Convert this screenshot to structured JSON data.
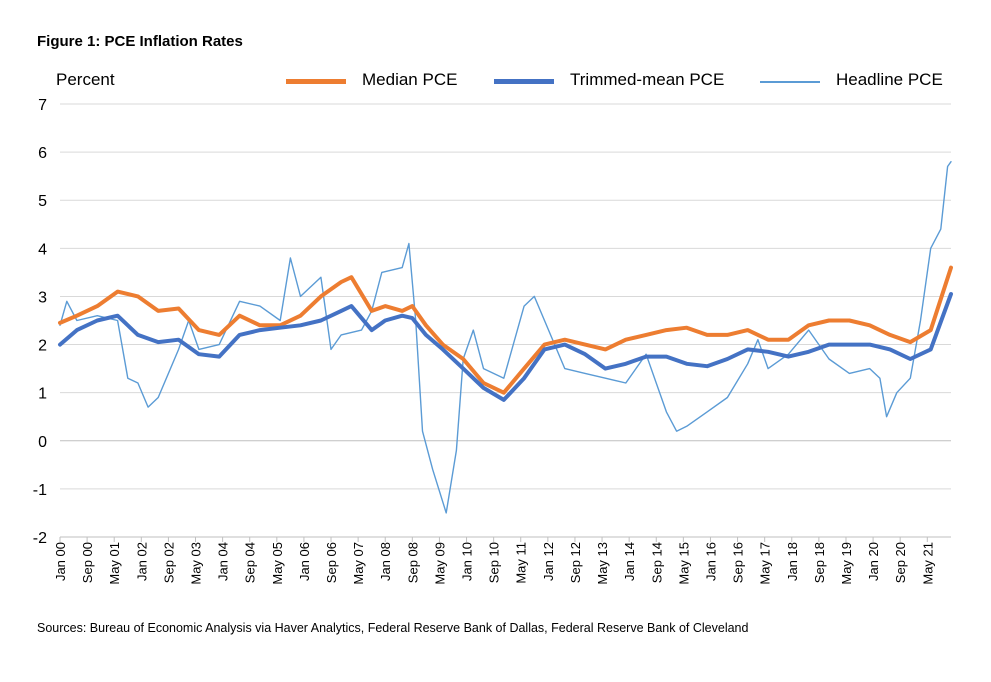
{
  "title": "Figure 1: PCE Inflation Rates",
  "source": "Sources: Bureau of Economic Analysis via Haver Analytics, Federal Reserve Bank of Dallas, Federal Reserve Bank of Cleveland",
  "chart_data": {
    "type": "line",
    "title": "Figure 1: PCE Inflation Rates",
    "xlabel": "",
    "ylabel": "Percent",
    "ylim": [
      -2,
      7
    ],
    "yticks": [
      -2,
      -1,
      0,
      1,
      2,
      3,
      4,
      5,
      6,
      7
    ],
    "xrange": [
      "2000-01",
      "2021-12"
    ],
    "xticks": [
      "Jan 00",
      "Sep 00",
      "May 01",
      "Jan 02",
      "Sep 02",
      "May 03",
      "Jan 04",
      "Sep 04",
      "May 05",
      "Jan 06",
      "Sep 06",
      "May 07",
      "Jan 08",
      "Sep 08",
      "May 09",
      "Jan 10",
      "Sep 10",
      "May 11",
      "Jan 12",
      "Sep 12",
      "May 13",
      "Jan 14",
      "Sep 14",
      "May 15",
      "Jan 16",
      "Sep 16",
      "May 17",
      "Jan 18",
      "Sep 18",
      "May 19",
      "Jan 20",
      "Sep 20",
      "May 21"
    ],
    "grid": "horizontal",
    "legend": "top",
    "series": [
      {
        "name": "Median PCE",
        "color": "#ED7D31",
        "width": "thick",
        "points": [
          [
            "2000-01",
            2.45
          ],
          [
            "2000-06",
            2.6
          ],
          [
            "2000-12",
            2.8
          ],
          [
            "2001-06",
            3.1
          ],
          [
            "2001-12",
            3.0
          ],
          [
            "2002-06",
            2.7
          ],
          [
            "2002-12",
            2.75
          ],
          [
            "2003-06",
            2.3
          ],
          [
            "2003-12",
            2.2
          ],
          [
            "2004-06",
            2.6
          ],
          [
            "2004-12",
            2.4
          ],
          [
            "2005-06",
            2.4
          ],
          [
            "2005-12",
            2.6
          ],
          [
            "2006-06",
            3.0
          ],
          [
            "2006-12",
            3.3
          ],
          [
            "2007-03",
            3.4
          ],
          [
            "2007-09",
            2.7
          ],
          [
            "2008-01",
            2.8
          ],
          [
            "2008-06",
            2.7
          ],
          [
            "2008-09",
            2.8
          ],
          [
            "2009-01",
            2.4
          ],
          [
            "2009-06",
            2.0
          ],
          [
            "2009-12",
            1.7
          ],
          [
            "2010-06",
            1.2
          ],
          [
            "2010-12",
            1.0
          ],
          [
            "2011-06",
            1.5
          ],
          [
            "2011-12",
            2.0
          ],
          [
            "2012-06",
            2.1
          ],
          [
            "2012-12",
            2.0
          ],
          [
            "2013-06",
            1.9
          ],
          [
            "2013-12",
            2.1
          ],
          [
            "2014-06",
            2.2
          ],
          [
            "2014-12",
            2.3
          ],
          [
            "2015-06",
            2.35
          ],
          [
            "2015-12",
            2.2
          ],
          [
            "2016-06",
            2.2
          ],
          [
            "2016-12",
            2.3
          ],
          [
            "2017-06",
            2.1
          ],
          [
            "2017-12",
            2.1
          ],
          [
            "2018-06",
            2.4
          ],
          [
            "2018-12",
            2.5
          ],
          [
            "2019-06",
            2.5
          ],
          [
            "2019-12",
            2.4
          ],
          [
            "2020-06",
            2.2
          ],
          [
            "2020-12",
            2.05
          ],
          [
            "2021-06",
            2.3
          ],
          [
            "2021-12",
            3.6
          ]
        ]
      },
      {
        "name": "Trimmed-mean PCE",
        "color": "#4472C4",
        "width": "thick",
        "points": [
          [
            "2000-01",
            2.0
          ],
          [
            "2000-06",
            2.3
          ],
          [
            "2000-12",
            2.5
          ],
          [
            "2001-06",
            2.6
          ],
          [
            "2001-12",
            2.2
          ],
          [
            "2002-06",
            2.05
          ],
          [
            "2002-12",
            2.1
          ],
          [
            "2003-06",
            1.8
          ],
          [
            "2003-12",
            1.75
          ],
          [
            "2004-06",
            2.2
          ],
          [
            "2004-12",
            2.3
          ],
          [
            "2005-06",
            2.35
          ],
          [
            "2005-12",
            2.4
          ],
          [
            "2006-06",
            2.5
          ],
          [
            "2006-12",
            2.7
          ],
          [
            "2007-03",
            2.8
          ],
          [
            "2007-09",
            2.3
          ],
          [
            "2008-01",
            2.5
          ],
          [
            "2008-06",
            2.6
          ],
          [
            "2008-09",
            2.55
          ],
          [
            "2009-01",
            2.2
          ],
          [
            "2009-06",
            1.9
          ],
          [
            "2009-12",
            1.5
          ],
          [
            "2010-06",
            1.1
          ],
          [
            "2010-12",
            0.85
          ],
          [
            "2011-06",
            1.3
          ],
          [
            "2011-12",
            1.9
          ],
          [
            "2012-06",
            2.0
          ],
          [
            "2012-12",
            1.8
          ],
          [
            "2013-06",
            1.5
          ],
          [
            "2013-12",
            1.6
          ],
          [
            "2014-06",
            1.75
          ],
          [
            "2014-12",
            1.75
          ],
          [
            "2015-06",
            1.6
          ],
          [
            "2015-12",
            1.55
          ],
          [
            "2016-06",
            1.7
          ],
          [
            "2016-12",
            1.9
          ],
          [
            "2017-06",
            1.85
          ],
          [
            "2017-12",
            1.75
          ],
          [
            "2018-06",
            1.85
          ],
          [
            "2018-12",
            2.0
          ],
          [
            "2019-06",
            2.0
          ],
          [
            "2019-12",
            2.0
          ],
          [
            "2020-06",
            1.9
          ],
          [
            "2020-12",
            1.7
          ],
          [
            "2021-06",
            1.9
          ],
          [
            "2021-12",
            3.05
          ]
        ]
      },
      {
        "name": "Headline PCE",
        "color": "#5B9BD5",
        "width": "thin",
        "points": [
          [
            "2000-01",
            2.4
          ],
          [
            "2000-03",
            2.9
          ],
          [
            "2000-06",
            2.5
          ],
          [
            "2000-12",
            2.6
          ],
          [
            "2001-06",
            2.5
          ],
          [
            "2001-09",
            1.3
          ],
          [
            "2001-12",
            1.2
          ],
          [
            "2002-03",
            0.7
          ],
          [
            "2002-06",
            0.9
          ],
          [
            "2002-12",
            1.9
          ],
          [
            "2003-03",
            2.5
          ],
          [
            "2003-06",
            1.9
          ],
          [
            "2003-12",
            2.0
          ],
          [
            "2004-06",
            2.9
          ],
          [
            "2004-12",
            2.8
          ],
          [
            "2005-06",
            2.5
          ],
          [
            "2005-09",
            3.8
          ],
          [
            "2005-12",
            3.0
          ],
          [
            "2006-06",
            3.4
          ],
          [
            "2006-09",
            1.9
          ],
          [
            "2006-12",
            2.2
          ],
          [
            "2007-06",
            2.3
          ],
          [
            "2007-09",
            2.7
          ],
          [
            "2007-12",
            3.5
          ],
          [
            "2008-06",
            3.6
          ],
          [
            "2008-08",
            4.1
          ],
          [
            "2008-10",
            2.5
          ],
          [
            "2008-12",
            0.2
          ],
          [
            "2009-03",
            -0.6
          ],
          [
            "2009-07",
            -1.5
          ],
          [
            "2009-10",
            -0.2
          ],
          [
            "2009-12",
            1.7
          ],
          [
            "2010-03",
            2.3
          ],
          [
            "2010-06",
            1.5
          ],
          [
            "2010-12",
            1.3
          ],
          [
            "2011-06",
            2.8
          ],
          [
            "2011-09",
            3.0
          ],
          [
            "2011-12",
            2.5
          ],
          [
            "2012-06",
            1.5
          ],
          [
            "2012-12",
            1.4
          ],
          [
            "2013-06",
            1.3
          ],
          [
            "2013-12",
            1.2
          ],
          [
            "2014-06",
            1.8
          ],
          [
            "2014-12",
            0.6
          ],
          [
            "2015-03",
            0.2
          ],
          [
            "2015-06",
            0.3
          ],
          [
            "2015-12",
            0.6
          ],
          [
            "2016-06",
            0.9
          ],
          [
            "2016-12",
            1.6
          ],
          [
            "2017-03",
            2.1
          ],
          [
            "2017-06",
            1.5
          ],
          [
            "2017-12",
            1.8
          ],
          [
            "2018-06",
            2.3
          ],
          [
            "2018-12",
            1.7
          ],
          [
            "2019-06",
            1.4
          ],
          [
            "2019-12",
            1.5
          ],
          [
            "2020-03",
            1.3
          ],
          [
            "2020-05",
            0.5
          ],
          [
            "2020-08",
            1.0
          ],
          [
            "2020-12",
            1.3
          ],
          [
            "2021-03",
            2.5
          ],
          [
            "2021-06",
            4.0
          ],
          [
            "2021-09",
            4.4
          ],
          [
            "2021-11",
            5.7
          ],
          [
            "2021-12",
            5.8
          ]
        ]
      }
    ]
  }
}
